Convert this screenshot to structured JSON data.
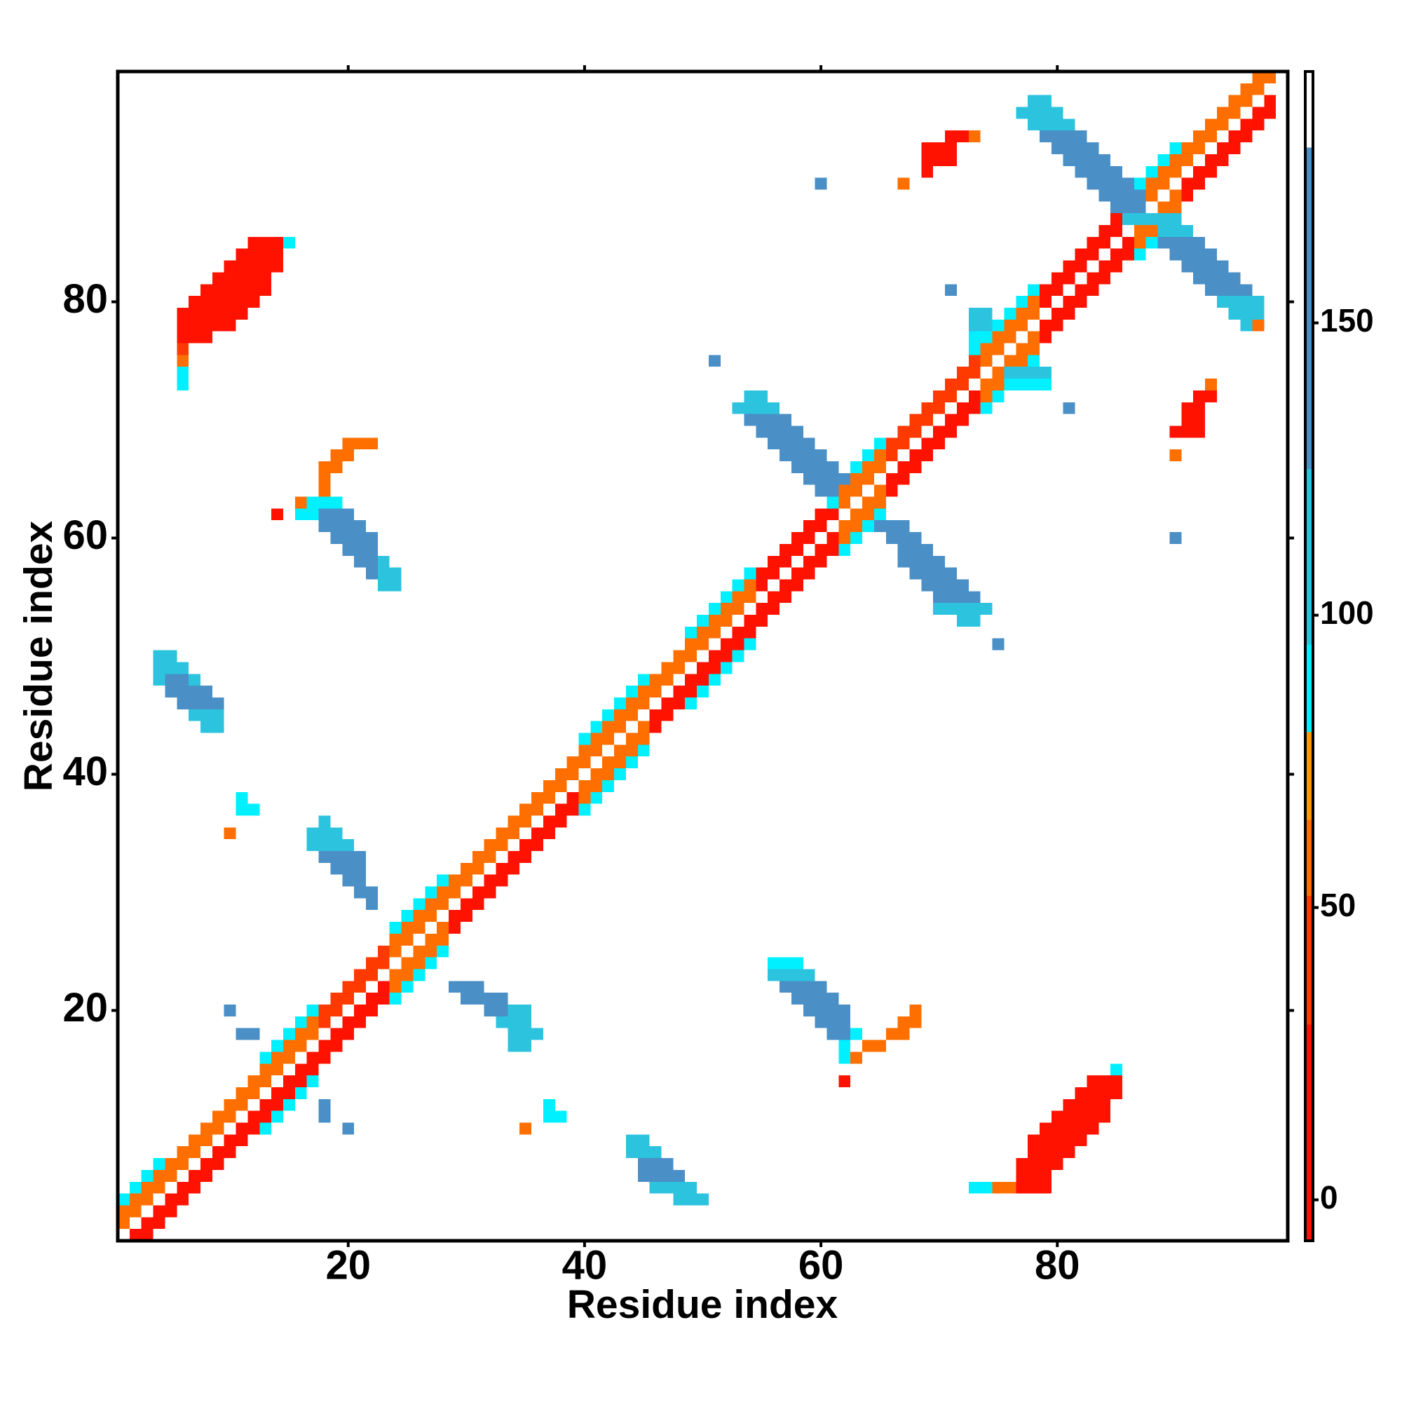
{
  "chart_data": {
    "type": "heatmap",
    "xlabel": "Residue index",
    "ylabel": "Residue index",
    "xlim": [
      0.5,
      99.5
    ],
    "ylim": [
      0.5,
      99.5
    ],
    "xticks": [
      20,
      40,
      60,
      80
    ],
    "yticks": [
      20,
      40,
      60,
      80
    ],
    "clim": [
      -7,
      193
    ],
    "cticks": [
      0,
      50,
      100,
      150
    ],
    "color_bins": [
      -7,
      30,
      52,
      65,
      80,
      95,
      125,
      180,
      193
    ],
    "colors": [
      "#ff1200",
      "#ff3a00",
      "#ff6f00",
      "#ff9a00",
      "#00f0ff",
      "#2cc3de",
      "#4a8fc6",
      "#ffffff"
    ],
    "bands": [
      [
        1,
        12,
        1,
        2,
        58
      ],
      [
        1,
        12,
        -2,
        -1,
        10
      ],
      [
        1,
        4,
        3,
        3,
        88
      ],
      [
        13,
        17,
        1,
        2,
        58
      ],
      [
        13,
        17,
        -2,
        -1,
        10
      ],
      [
        13,
        17,
        3,
        3,
        88
      ],
      [
        13,
        17,
        -3,
        -3,
        88
      ],
      [
        18,
        23,
        1,
        2,
        40
      ],
      [
        18,
        23,
        -2,
        -1,
        10
      ],
      [
        24,
        28,
        1,
        2,
        58
      ],
      [
        24,
        28,
        -2,
        -1,
        58
      ],
      [
        24,
        28,
        3,
        3,
        88
      ],
      [
        24,
        28,
        -3,
        -3,
        88
      ],
      [
        29,
        39,
        1,
        2,
        58
      ],
      [
        29,
        39,
        -2,
        -1,
        10
      ],
      [
        40,
        45,
        1,
        2,
        58
      ],
      [
        40,
        45,
        -2,
        -1,
        58
      ],
      [
        40,
        45,
        3,
        3,
        88
      ],
      [
        40,
        45,
        -3,
        -3,
        88
      ],
      [
        46,
        54,
        1,
        2,
        58
      ],
      [
        46,
        54,
        -2,
        -1,
        10
      ],
      [
        49,
        54,
        3,
        3,
        88
      ],
      [
        49,
        54,
        -3,
        -3,
        88
      ],
      [
        55,
        61,
        1,
        2,
        10
      ],
      [
        55,
        61,
        -2,
        -1,
        10
      ],
      [
        62,
        65,
        1,
        2,
        58
      ],
      [
        62,
        65,
        -2,
        -1,
        58
      ],
      [
        62,
        65,
        3,
        3,
        88
      ],
      [
        62,
        65,
        -3,
        -3,
        88
      ],
      [
        66,
        73,
        1,
        2,
        40
      ],
      [
        66,
        73,
        -2,
        -1,
        10
      ],
      [
        74,
        78,
        1,
        2,
        58
      ],
      [
        74,
        78,
        -2,
        -1,
        58
      ],
      [
        74,
        78,
        3,
        3,
        88
      ],
      [
        74,
        78,
        -3,
        -3,
        88
      ],
      [
        79,
        86,
        1,
        2,
        10
      ],
      [
        79,
        86,
        -2,
        -1,
        10
      ],
      [
        87,
        90,
        1,
        2,
        58
      ],
      [
        87,
        90,
        -2,
        -1,
        58
      ],
      [
        87,
        90,
        3,
        3,
        88
      ],
      [
        87,
        90,
        -3,
        -3,
        88
      ],
      [
        91,
        98,
        1,
        2,
        58
      ],
      [
        91,
        98,
        -2,
        -1,
        10
      ]
    ],
    "runs": [
      [
        85,
        12,
        14,
        10
      ],
      [
        85,
        15,
        15,
        88
      ],
      [
        84,
        11,
        14,
        10
      ],
      [
        83,
        10,
        14,
        10
      ],
      [
        82,
        9,
        13,
        10
      ],
      [
        81,
        8,
        13,
        10
      ],
      [
        80,
        7,
        12,
        10
      ],
      [
        79,
        6,
        11,
        10
      ],
      [
        78,
        6,
        10,
        10
      ],
      [
        77,
        6,
        8,
        10
      ],
      [
        76,
        6,
        6,
        40
      ],
      [
        75,
        6,
        6,
        58
      ],
      [
        74,
        6,
        6,
        88
      ],
      [
        73,
        6,
        6,
        88
      ],
      [
        68,
        20,
        22,
        58
      ],
      [
        67,
        19,
        20,
        58
      ],
      [
        66,
        18,
        19,
        58
      ],
      [
        65,
        18,
        18,
        58
      ],
      [
        64,
        18,
        18,
        58
      ],
      [
        63,
        16,
        16,
        58
      ],
      [
        63,
        17,
        19,
        88
      ],
      [
        62,
        14,
        14,
        10
      ],
      [
        62,
        16,
        17,
        88
      ],
      [
        62,
        18,
        20,
        150
      ],
      [
        61,
        18,
        21,
        150
      ],
      [
        60,
        19,
        22,
        150
      ],
      [
        59,
        20,
        22,
        150
      ],
      [
        58,
        21,
        22,
        150
      ],
      [
        58,
        23,
        23,
        110
      ],
      [
        57,
        22,
        22,
        150
      ],
      [
        57,
        23,
        24,
        110
      ],
      [
        56,
        23,
        24,
        110
      ],
      [
        50,
        4,
        5,
        110
      ],
      [
        49,
        4,
        6,
        110
      ],
      [
        48,
        4,
        4,
        110
      ],
      [
        48,
        5,
        6,
        150
      ],
      [
        48,
        7,
        7,
        110
      ],
      [
        47,
        5,
        8,
        150
      ],
      [
        46,
        6,
        9,
        150
      ],
      [
        45,
        7,
        9,
        110
      ],
      [
        44,
        8,
        9,
        110
      ],
      [
        38,
        11,
        11,
        88
      ],
      [
        37,
        11,
        12,
        88
      ],
      [
        35,
        10,
        10,
        58
      ],
      [
        36,
        18,
        18,
        110
      ],
      [
        35,
        17,
        19,
        110
      ],
      [
        34,
        17,
        20,
        110
      ],
      [
        33,
        18,
        21,
        150
      ],
      [
        32,
        19,
        21,
        150
      ],
      [
        31,
        20,
        21,
        150
      ],
      [
        30,
        21,
        22,
        150
      ],
      [
        29,
        22,
        22,
        150
      ],
      [
        20,
        10,
        10,
        150
      ],
      [
        18,
        11,
        12,
        150
      ],
      [
        12,
        18,
        18,
        150
      ],
      [
        11,
        18,
        18,
        150
      ],
      [
        10,
        20,
        20,
        150
      ],
      [
        22,
        29,
        31,
        150
      ],
      [
        21,
        30,
        33,
        150
      ],
      [
        20,
        32,
        33,
        150
      ],
      [
        20,
        34,
        35,
        110
      ],
      [
        19,
        33,
        35,
        110
      ],
      [
        18,
        34,
        36,
        110
      ],
      [
        17,
        34,
        35,
        110
      ],
      [
        12,
        37,
        37,
        88
      ],
      [
        11,
        37,
        38,
        88
      ],
      [
        10,
        35,
        35,
        58
      ],
      [
        9,
        44,
        45,
        110
      ],
      [
        8,
        44,
        46,
        110
      ],
      [
        7,
        45,
        47,
        150
      ],
      [
        6,
        45,
        48,
        150
      ],
      [
        5,
        46,
        49,
        110
      ],
      [
        4,
        48,
        50,
        110
      ],
      [
        24,
        56,
        58,
        88
      ],
      [
        23,
        56,
        59,
        110
      ],
      [
        22,
        57,
        60,
        150
      ],
      [
        21,
        58,
        61,
        150
      ],
      [
        20,
        59,
        62,
        150
      ],
      [
        19,
        60,
        62,
        150
      ],
      [
        18,
        61,
        62,
        150
      ],
      [
        18,
        63,
        63,
        88
      ],
      [
        17,
        62,
        62,
        88
      ],
      [
        16,
        62,
        62,
        88
      ],
      [
        16,
        63,
        63,
        58
      ],
      [
        17,
        64,
        65,
        58
      ],
      [
        18,
        66,
        67,
        58
      ],
      [
        19,
        67,
        68,
        58
      ],
      [
        20,
        68,
        68,
        58
      ],
      [
        14,
        62,
        62,
        10
      ],
      [
        15,
        85,
        85,
        88
      ],
      [
        14,
        83,
        85,
        10
      ],
      [
        13,
        82,
        85,
        10
      ],
      [
        12,
        81,
        84,
        10
      ],
      [
        11,
        80,
        84,
        10
      ],
      [
        10,
        79,
        83,
        10
      ],
      [
        9,
        78,
        82,
        10
      ],
      [
        8,
        78,
        81,
        10
      ],
      [
        7,
        77,
        80,
        10
      ],
      [
        6,
        77,
        79,
        10
      ],
      [
        5,
        73,
        74,
        88
      ],
      [
        5,
        75,
        76,
        58
      ],
      [
        5,
        77,
        79,
        10
      ],
      [
        61,
        64,
        64,
        88
      ],
      [
        61,
        65,
        67,
        150
      ],
      [
        60,
        66,
        68,
        150
      ],
      [
        59,
        67,
        69,
        150
      ],
      [
        58,
        67,
        70,
        150
      ],
      [
        57,
        68,
        71,
        150
      ],
      [
        56,
        69,
        72,
        150
      ],
      [
        55,
        70,
        73,
        150
      ],
      [
        54,
        70,
        74,
        110
      ],
      [
        53,
        72,
        73,
        110
      ],
      [
        51,
        75,
        75,
        150
      ],
      [
        72,
        54,
        55,
        110
      ],
      [
        71,
        53,
        56,
        110
      ],
      [
        70,
        54,
        57,
        150
      ],
      [
        69,
        55,
        58,
        150
      ],
      [
        68,
        56,
        59,
        150
      ],
      [
        67,
        57,
        60,
        150
      ],
      [
        66,
        58,
        61,
        150
      ],
      [
        65,
        59,
        62,
        150
      ],
      [
        64,
        60,
        61,
        150
      ],
      [
        63,
        61,
        61,
        88
      ],
      [
        75,
        51,
        51,
        150
      ],
      [
        79,
        73,
        74,
        110
      ],
      [
        78,
        73,
        74,
        110
      ],
      [
        77,
        73,
        74,
        88
      ],
      [
        76,
        73,
        73,
        88
      ],
      [
        74,
        76,
        79,
        110
      ],
      [
        73,
        76,
        79,
        88
      ],
      [
        81,
        71,
        71,
        150
      ],
      [
        71,
        81,
        81,
        150
      ],
      [
        73,
        93,
        93,
        58
      ],
      [
        72,
        92,
        93,
        10
      ],
      [
        71,
        91,
        92,
        10
      ],
      [
        70,
        91,
        92,
        10
      ],
      [
        69,
        90,
        92,
        10
      ],
      [
        67,
        90,
        90,
        58
      ],
      [
        60,
        90,
        90,
        150
      ],
      [
        94,
        71,
        72,
        10
      ],
      [
        94,
        73,
        73,
        58
      ],
      [
        93,
        69,
        71,
        10
      ],
      [
        92,
        69,
        71,
        10
      ],
      [
        91,
        69,
        69,
        10
      ],
      [
        90,
        67,
        67,
        58
      ],
      [
        90,
        60,
        60,
        150
      ],
      [
        97,
        78,
        79,
        110
      ],
      [
        96,
        77,
        80,
        110
      ],
      [
        95,
        78,
        81,
        110
      ],
      [
        94,
        79,
        82,
        150
      ],
      [
        93,
        80,
        83,
        150
      ],
      [
        92,
        81,
        84,
        150
      ],
      [
        91,
        82,
        85,
        150
      ],
      [
        90,
        83,
        86,
        150
      ],
      [
        89,
        84,
        87,
        150
      ],
      [
        88,
        85,
        87,
        150
      ],
      [
        87,
        86,
        88,
        110
      ],
      [
        87,
        89,
        90,
        110
      ],
      [
        86,
        89,
        91,
        110
      ],
      [
        85,
        89,
        92,
        150
      ],
      [
        84,
        90,
        93,
        150
      ],
      [
        83,
        91,
        94,
        150
      ],
      [
        82,
        92,
        95,
        150
      ],
      [
        81,
        93,
        96,
        150
      ],
      [
        80,
        94,
        97,
        110
      ],
      [
        79,
        95,
        97,
        110
      ],
      [
        78,
        96,
        96,
        110
      ],
      [
        78,
        97,
        97,
        58
      ]
    ]
  }
}
